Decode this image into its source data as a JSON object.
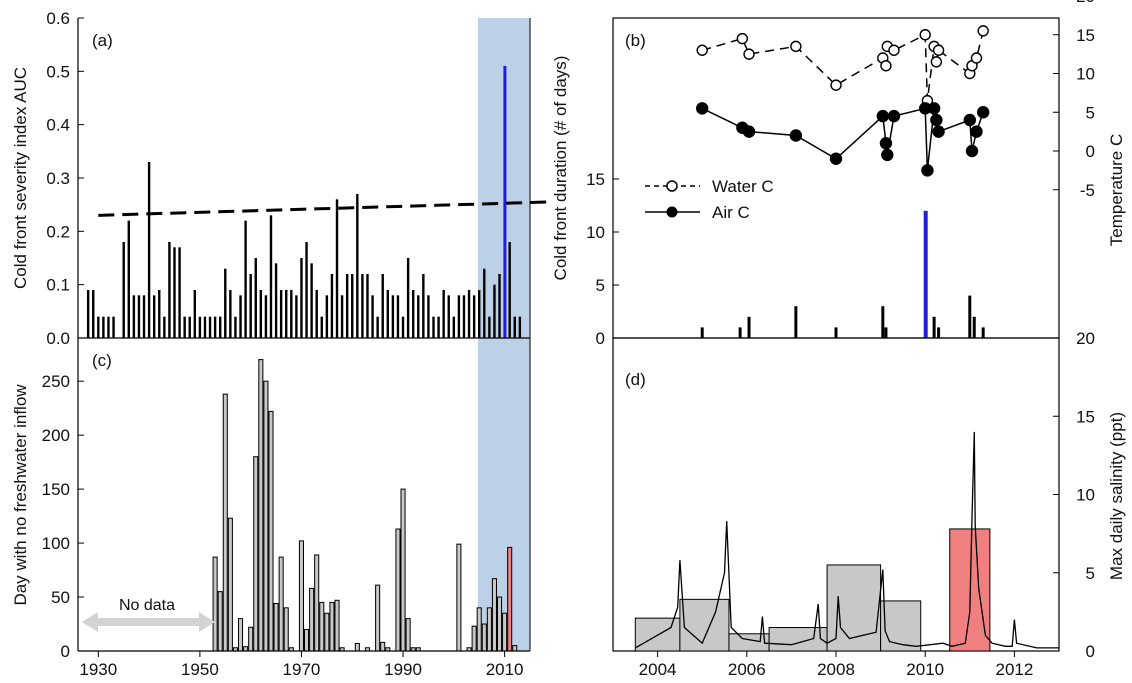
{
  "chart_data": [
    {
      "panel": "(a)",
      "type": "bar",
      "ylabel": "Cold front severity index AUC",
      "ylim": [
        0,
        0.6
      ],
      "yticks": [
        "0.0",
        "0.1",
        "0.2",
        "0.3",
        "0.4",
        "0.5",
        "0.6"
      ],
      "xlim": [
        1926,
        2015
      ],
      "highlight_span": [
        2004,
        2015
      ],
      "trend_line": {
        "style": "dashed",
        "from": [
          1930,
          0.23
        ],
        "to": [
          2015,
          0.255
        ]
      },
      "x": [
        1928,
        1929,
        1930,
        1931,
        1932,
        1933,
        1935,
        1936,
        1937,
        1938,
        1939,
        1940,
        1941,
        1942,
        1943,
        1944,
        1945,
        1946,
        1947,
        1948,
        1949,
        1950,
        1951,
        1952,
        1953,
        1954,
        1955,
        1956,
        1957,
        1958,
        1959,
        1960,
        1961,
        1962,
        1963,
        1964,
        1965,
        1966,
        1967,
        1968,
        1969,
        1970,
        1971,
        1972,
        1973,
        1974,
        1975,
        1976,
        1977,
        1978,
        1979,
        1980,
        1981,
        1982,
        1983,
        1984,
        1985,
        1986,
        1987,
        1988,
        1989,
        1990,
        1991,
        1992,
        1993,
        1994,
        1995,
        1996,
        1997,
        1998,
        1999,
        2000,
        2001,
        2002,
        2003,
        2004,
        2005,
        2006,
        2007,
        2008,
        2009,
        2010,
        2011,
        2012,
        2013
      ],
      "values": [
        0.09,
        0.09,
        0.04,
        0.04,
        0.04,
        0.04,
        0.18,
        0.22,
        0.08,
        0.08,
        0.08,
        0.33,
        0.08,
        0.09,
        0.04,
        0.18,
        0.17,
        0.17,
        0.04,
        0.04,
        0.09,
        0.04,
        0.04,
        0.04,
        0.04,
        0.04,
        0.13,
        0.09,
        0.04,
        0.08,
        0.22,
        0.12,
        0.15,
        0.09,
        0.08,
        0.23,
        0.14,
        0.09,
        0.09,
        0.09,
        0.08,
        0.15,
        0.18,
        0.14,
        0.09,
        0.04,
        0.08,
        0.12,
        0.26,
        0.08,
        0.12,
        0.12,
        0.27,
        0.12,
        0.12,
        0.08,
        0.04,
        0.12,
        0.09,
        0.08,
        0.08,
        0.04,
        0.15,
        0.09,
        0.08,
        0.12,
        0.08,
        0.04,
        0.04,
        0.09,
        0.08,
        0.04,
        0.08,
        0.08,
        0.09,
        0.08,
        0.09,
        0.13,
        0.04,
        0.1,
        0.12,
        0.51,
        0.18,
        0.04,
        0.04
      ],
      "highlight_bar": {
        "x": 2010,
        "value": 0.51,
        "color": "#1f1fd6"
      }
    },
    {
      "panel": "(b)",
      "type": "bar",
      "ylabel_left": "Cold front duration (# of days)",
      "ylabel_right": "Temperature C",
      "yticks_left": [
        "0",
        "5",
        "10",
        "15"
      ],
      "yticks_right": [
        "-5",
        "0",
        "5",
        "10",
        "15",
        "20"
      ],
      "xlim": [
        2003,
        2013
      ],
      "duration_x": [
        2005.0,
        2005.85,
        2006.05,
        2007.1,
        2008.0,
        2009.05,
        2009.12,
        2010.0,
        2010.2,
        2010.3,
        2011.0,
        2011.1,
        2011.3
      ],
      "duration_values": [
        1,
        1,
        2,
        3,
        1,
        3,
        1,
        12,
        2,
        1,
        4,
        2,
        1
      ],
      "highlight_bar": {
        "x": 2010.0,
        "value": 12,
        "color": "#1f1fd6"
      },
      "series": [
        {
          "name": "Water C",
          "marker": "open-circle",
          "line": "dashed",
          "x": [
            2005.0,
            2005.9,
            2006.05,
            2007.1,
            2008.0,
            2009.05,
            2009.12,
            2009.15,
            2009.3,
            2010.0,
            2010.05,
            2010.2,
            2010.25,
            2010.3,
            2011.0,
            2011.05,
            2011.15,
            2011.3
          ],
          "values": [
            13,
            14.5,
            12.5,
            13.5,
            8.5,
            12,
            11,
            13.5,
            13,
            15,
            6.5,
            13.5,
            11.5,
            13,
            10,
            11,
            12,
            15.5
          ]
        },
        {
          "name": "Air C",
          "marker": "filled-circle",
          "line": "solid",
          "x": [
            2005.0,
            2005.9,
            2006.05,
            2007.1,
            2008.0,
            2009.05,
            2009.12,
            2009.15,
            2009.3,
            2010.0,
            2010.05,
            2010.2,
            2010.25,
            2010.3,
            2011.0,
            2011.05,
            2011.15,
            2011.3
          ],
          "values": [
            5.5,
            3,
            2.5,
            2,
            -1,
            4.5,
            1,
            -0.5,
            4.5,
            5.5,
            -2.5,
            5.5,
            4,
            2.5,
            4,
            0,
            2.5,
            5
          ]
        }
      ]
    },
    {
      "panel": "(c)",
      "type": "bar",
      "ylabel": "Day with no freshwater inflow",
      "ylim": [
        0,
        290
      ],
      "yticks": [
        "0",
        "50",
        "100",
        "150",
        "200",
        "250"
      ],
      "xlim": [
        1926,
        2015
      ],
      "xticks": [
        "1930",
        "1950",
        "1970",
        "1990",
        "2010"
      ],
      "highlight_span": [
        2004,
        2015
      ],
      "annotation": "No data",
      "no_data_range": [
        1926,
        1952
      ],
      "x": [
        1953,
        1954,
        1955,
        1956,
        1957,
        1958,
        1959,
        1960,
        1961,
        1962,
        1963,
        1964,
        1965,
        1966,
        1967,
        1968,
        1970,
        1971,
        1972,
        1973,
        1974,
        1975,
        1976,
        1977,
        1978,
        1981,
        1983,
        1985,
        1986,
        1987,
        1989,
        1990,
        1991,
        1992,
        1993,
        2001,
        2003,
        2004,
        2005,
        2006,
        2007,
        2008,
        2009,
        2010,
        2011,
        2012
      ],
      "values": [
        87,
        55,
        238,
        123,
        3,
        30,
        4,
        22,
        180,
        270,
        250,
        222,
        44,
        87,
        40,
        3,
        102,
        20,
        58,
        89,
        45,
        35,
        45,
        47,
        3,
        7,
        3,
        61,
        8,
        3,
        113,
        150,
        30,
        3,
        3,
        99,
        3,
        23,
        40,
        25,
        40,
        67,
        50,
        35,
        96,
        5
      ],
      "highlight_bar": {
        "x": 2011,
        "value": 96,
        "color": "#f08080"
      }
    },
    {
      "panel": "(d)",
      "type": "bar",
      "ylabel": "Max daily salinity (ppt)",
      "ylim": [
        0,
        20
      ],
      "yticks": [
        "0",
        "5",
        "10",
        "15",
        "20"
      ],
      "xlim": [
        2003,
        2013
      ],
      "xticks": [
        "2004",
        "2006",
        "2008",
        "2010",
        "2012"
      ],
      "bins": [
        [
          2003.5,
          2004.5
        ],
        [
          2004.5,
          2005.6
        ],
        [
          2005.6,
          2006.5
        ],
        [
          2006.5,
          2007.8
        ],
        [
          2007.8,
          2009.0
        ],
        [
          2009.0,
          2009.9
        ],
        [
          2010.55,
          2011.45
        ]
      ],
      "values": [
        2.1,
        3.3,
        1.1,
        1.5,
        5.5,
        3.2,
        7.8
      ],
      "highlight_bar": {
        "index": 6,
        "color": "#f08080"
      },
      "line_x": [
        2003.5,
        2004.3,
        2004.45,
        2004.5,
        2004.6,
        2005.0,
        2005.3,
        2005.5,
        2005.55,
        2005.65,
        2005.9,
        2006.3,
        2006.35,
        2006.4,
        2007.0,
        2007.5,
        2007.6,
        2007.65,
        2007.8,
        2008.0,
        2008.05,
        2008.1,
        2008.3,
        2008.9,
        2009.05,
        2009.1,
        2009.2,
        2009.5,
        2009.8,
        2010.4,
        2010.6,
        2010.9,
        2011.0,
        2011.05,
        2011.1,
        2011.12,
        2011.2,
        2011.35,
        2011.5,
        2011.8,
        2011.95,
        2012.0,
        2012.05,
        2012.5,
        2013.0
      ],
      "line_values": [
        0.2,
        1.5,
        2.8,
        5.8,
        1.5,
        0.5,
        2.5,
        5,
        8.3,
        1.5,
        0.8,
        0.6,
        2.2,
        0.5,
        0.4,
        0.8,
        3,
        0.8,
        0.5,
        0.8,
        3.5,
        1.5,
        0.8,
        1.2,
        5.2,
        1.3,
        0.6,
        0.4,
        0.3,
        0.5,
        0.3,
        0.5,
        2.5,
        8.5,
        14,
        8,
        4,
        1,
        0.5,
        0.3,
        0.3,
        2,
        0.5,
        0.2,
        0.2
      ]
    }
  ]
}
